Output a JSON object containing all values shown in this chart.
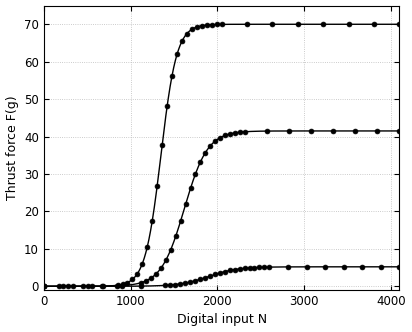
{
  "title": "",
  "xlabel": "Digital input N",
  "ylabel": "Thrust force F(g)",
  "xlim": [
    0,
    4100
  ],
  "ylim": [
    -1,
    75
  ],
  "xticks": [
    0,
    1000,
    2000,
    3000,
    4000
  ],
  "yticks": [
    0,
    10,
    20,
    30,
    40,
    50,
    60,
    70
  ],
  "curves": [
    {
      "saturation": 70.0,
      "midpoint": 1350,
      "steepness": 0.011,
      "color": "black"
    },
    {
      "saturation": 41.5,
      "midpoint": 1620,
      "steepness": 0.0075,
      "color": "black"
    },
    {
      "saturation": 5.2,
      "midpoint": 1900,
      "steepness": 0.006,
      "color": "black"
    }
  ],
  "marker": "o",
  "markersize": 3.5,
  "linewidth": 1.0,
  "background_color": "#ffffff",
  "grid": true,
  "grid_color": "#bbbbbb",
  "grid_linestyle": ":"
}
